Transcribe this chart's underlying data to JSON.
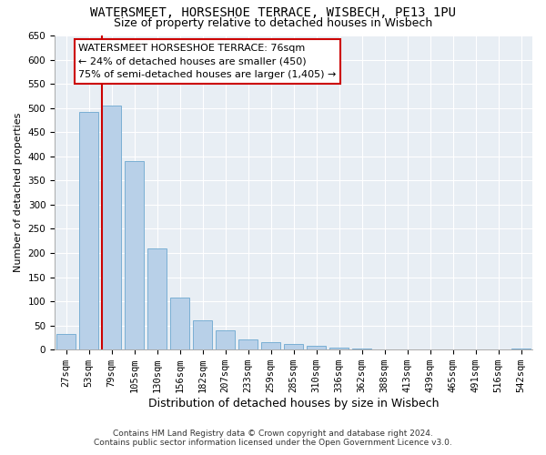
{
  "title": "WATERSMEET, HORSESHOE TERRACE, WISBECH, PE13 1PU",
  "subtitle": "Size of property relative to detached houses in Wisbech",
  "xlabel": "Distribution of detached houses by size in Wisbech",
  "ylabel": "Number of detached properties",
  "bar_labels": [
    "27sqm",
    "53sqm",
    "79sqm",
    "105sqm",
    "130sqm",
    "156sqm",
    "182sqm",
    "207sqm",
    "233sqm",
    "259sqm",
    "285sqm",
    "310sqm",
    "336sqm",
    "362sqm",
    "388sqm",
    "413sqm",
    "439sqm",
    "465sqm",
    "491sqm",
    "516sqm",
    "542sqm"
  ],
  "bar_values": [
    32,
    492,
    505,
    390,
    210,
    107,
    60,
    40,
    22,
    15,
    12,
    8,
    5,
    3,
    1,
    0,
    0,
    1,
    0,
    0,
    3
  ],
  "bar_color": "#b8d0e8",
  "bar_edge_color": "#7aafd4",
  "ylim": [
    0,
    650
  ],
  "yticks": [
    0,
    50,
    100,
    150,
    200,
    250,
    300,
    350,
    400,
    450,
    500,
    550,
    600,
    650
  ],
  "vline_color": "#cc0000",
  "annotation_line1": "WATERSMEET HORSESHOE TERRACE: 76sqm",
  "annotation_line2": "← 24% of detached houses are smaller (450)",
  "annotation_line3": "75% of semi-detached houses are larger (1,405) →",
  "annotation_box_facecolor": "#ffffff",
  "annotation_box_edgecolor": "#cc0000",
  "footer_line1": "Contains HM Land Registry data © Crown copyright and database right 2024.",
  "footer_line2": "Contains public sector information licensed under the Open Government Licence v3.0.",
  "bg_color": "#ffffff",
  "plot_bg_color": "#e8eef4",
  "title_fontsize": 10,
  "subtitle_fontsize": 9,
  "xlabel_fontsize": 9,
  "ylabel_fontsize": 8,
  "tick_fontsize": 7.5,
  "annot_fontsize": 8,
  "footer_fontsize": 6.5
}
